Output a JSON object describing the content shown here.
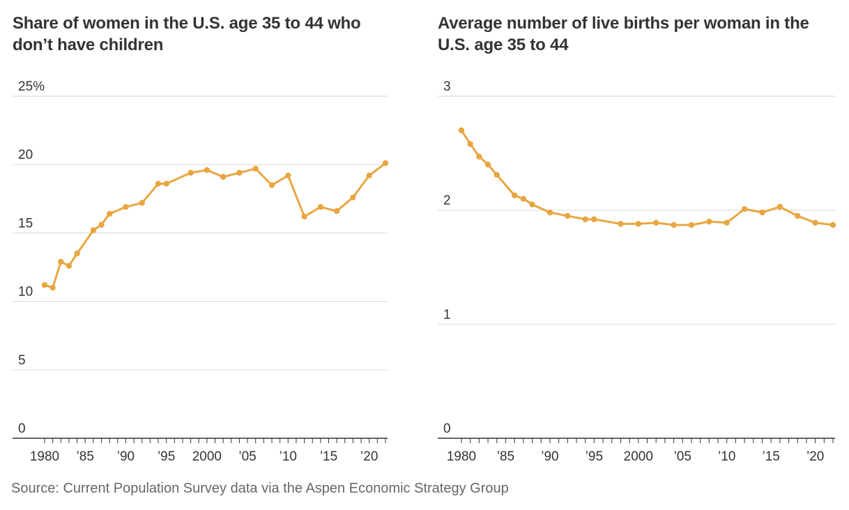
{
  "charts": {
    "left_title": "Share of women in the U.S. age 35 to 44 who don’t have children",
    "right_title": "Average number of live births per woman in the U.S. age 35 to 44"
  },
  "source": "Source: Current Population Survey data via the Aspen Economic Strategy Group",
  "colors": {
    "line": "#e8a640",
    "grid": "#dddddd",
    "axis": "#333333"
  },
  "chart_data": [
    {
      "type": "line",
      "title": "Share of women in the U.S. age 35 to 44 who don’t have children",
      "xlim": [
        1980,
        2022
      ],
      "ylim": [
        0,
        25
      ],
      "yticks": [
        0,
        5,
        10,
        15,
        20,
        25
      ],
      "ytick_labels": [
        "0",
        "5",
        "10",
        "15",
        "20",
        "25%"
      ],
      "xticks": [
        1980,
        1985,
        1990,
        1995,
        2000,
        2005,
        2010,
        2015,
        2020
      ],
      "xtick_labels": [
        "1980",
        "’85",
        "’90",
        "’95",
        "2000",
        "’05",
        "’10",
        "’15",
        "’20"
      ],
      "grid": true,
      "series": [
        {
          "x": [
            1980,
            1981,
            1982,
            1983,
            1984,
            1986,
            1987,
            1988,
            1990,
            1992,
            1994,
            1995,
            1998,
            2000,
            2002,
            2004,
            2006,
            2008,
            2010,
            2012,
            2014,
            2016,
            2018,
            2020,
            2022
          ],
          "y": [
            11.2,
            11.0,
            12.9,
            12.6,
            13.5,
            15.2,
            15.6,
            16.4,
            16.9,
            17.2,
            18.6,
            18.6,
            19.4,
            19.6,
            19.1,
            19.4,
            19.7,
            18.5,
            19.2,
            16.2,
            16.9,
            16.6,
            17.6,
            19.2,
            20.1
          ]
        }
      ]
    },
    {
      "type": "line",
      "title": "Average number of live births per woman in the U.S. age 35 to 44",
      "xlim": [
        1980,
        2022
      ],
      "ylim": [
        0,
        3
      ],
      "yticks": [
        0,
        1,
        2,
        3
      ],
      "ytick_labels": [
        "0",
        "1",
        "2",
        "3"
      ],
      "xticks": [
        1980,
        1985,
        1990,
        1995,
        2000,
        2005,
        2010,
        2015,
        2020
      ],
      "xtick_labels": [
        "1980",
        "’85",
        "’90",
        "’95",
        "2000",
        "’05",
        "’10",
        "’15",
        "’20"
      ],
      "grid": true,
      "series": [
        {
          "x": [
            1980,
            1981,
            1982,
            1983,
            1984,
            1986,
            1987,
            1988,
            1990,
            1992,
            1994,
            1995,
            1998,
            2000,
            2002,
            2004,
            2006,
            2008,
            2010,
            2012,
            2014,
            2016,
            2018,
            2020,
            2022
          ],
          "y": [
            2.7,
            2.58,
            2.47,
            2.4,
            2.31,
            2.13,
            2.1,
            2.05,
            1.98,
            1.95,
            1.92,
            1.92,
            1.88,
            1.88,
            1.89,
            1.87,
            1.87,
            1.9,
            1.89,
            2.01,
            1.98,
            2.03,
            1.95,
            1.89,
            1.87
          ]
        }
      ]
    }
  ]
}
